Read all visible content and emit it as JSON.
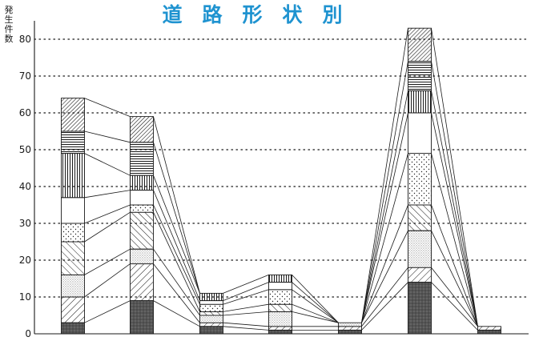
{
  "chart_data": {
    "type": "bar",
    "stacked": true,
    "title": "道　路　形　状　別",
    "ylabel": "発生件数",
    "ylim": [
      0,
      85
    ],
    "yticks": [
      0,
      10,
      20,
      30,
      40,
      50,
      60,
      70,
      80
    ],
    "grid": "horizontal dotted",
    "connector_lines": true,
    "categories": [
      "",
      "",
      "",
      "",
      "",
      "",
      ""
    ],
    "totals": [
      64,
      59,
      11,
      16,
      3,
      83,
      2
    ],
    "segments": [
      [
        3,
        7,
        6,
        9,
        5,
        7,
        12,
        6,
        9
      ],
      [
        9,
        10,
        4,
        10,
        2,
        4,
        4,
        9,
        7
      ],
      [
        2,
        1,
        2,
        1,
        2,
        1,
        2
      ],
      [
        1,
        1,
        4,
        2,
        4,
        2,
        2
      ],
      [
        1,
        1,
        1
      ],
      [
        14,
        4,
        10,
        7,
        14,
        11,
        6,
        8,
        9
      ],
      [
        1,
        1
      ]
    ],
    "colors": {
      "ink": "#1a1a1a",
      "title": "#1f93d0",
      "fill_dark": "#555555"
    }
  }
}
